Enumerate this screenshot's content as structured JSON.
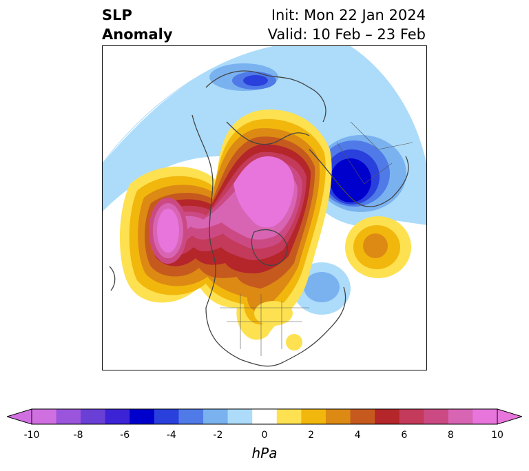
{
  "header": {
    "title_line1": "SLP",
    "title_line2": "Anomaly",
    "init_text": "Init: Mon 22 Jan 2024",
    "valid_text": "Valid: 10 Feb – 23 Feb"
  },
  "colorbar": {
    "unit": "hPa",
    "ticks": [
      "-10",
      "-8",
      "-6",
      "-4",
      "-2",
      "0",
      "2",
      "4",
      "6",
      "8",
      "10"
    ],
    "colors": [
      "#d070e0",
      "#9b55dd",
      "#6a3fd6",
      "#3c23d6",
      "#0000cc",
      "#2a40dd",
      "#4f7ae8",
      "#7ab2f0",
      "#acdcfa",
      "#ffffff",
      "#fde150",
      "#f2b70d",
      "#dc8a14",
      "#c65a1e",
      "#b4262a",
      "#c43a5a",
      "#cc4a84",
      "#d865b4",
      "#e775dc"
    ],
    "extend_low_color": "#d070e0",
    "extend_high_color": "#e775dc"
  }
}
